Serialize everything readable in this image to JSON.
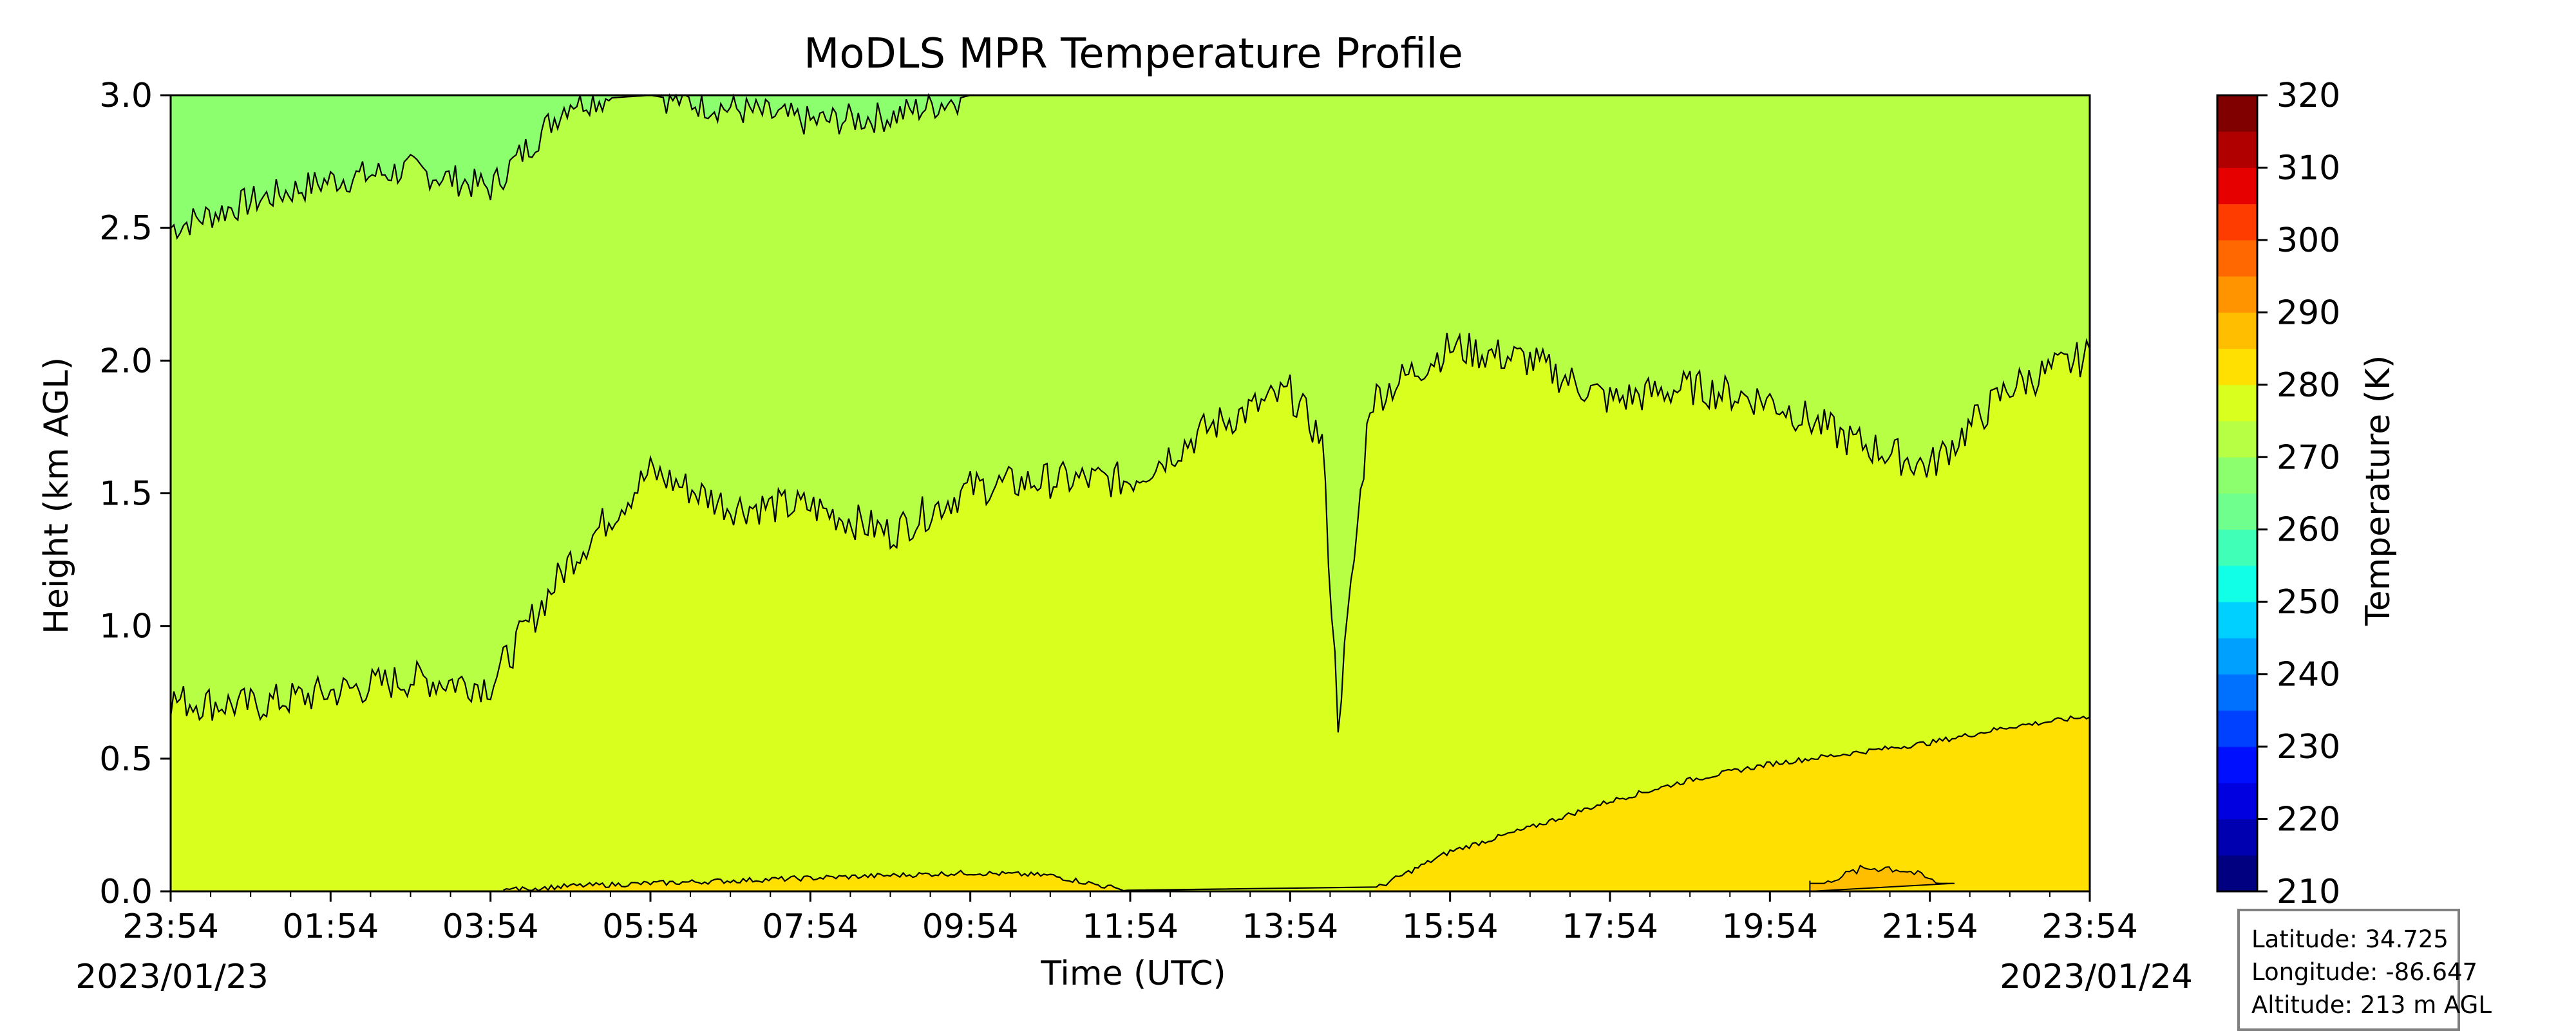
{
  "chart_data": {
    "type": "heatmap",
    "title": "MoDLS MPR Temperature Profile",
    "xlabel": "Time (UTC)",
    "ylabel": "Height (km AGL)",
    "colorbar_label": "Temperature (K)",
    "x_ticks": [
      "23:54",
      "01:54",
      "03:54",
      "05:54",
      "07:54",
      "09:54",
      "11:54",
      "13:54",
      "15:54",
      "17:54",
      "19:54",
      "21:54",
      "23:54"
    ],
    "date_start": "2023/01/23",
    "date_end": "2023/01/24",
    "ylim": [
      0.0,
      3.0
    ],
    "y_ticks": [
      "0.0",
      "0.5",
      "1.0",
      "1.5",
      "2.0",
      "2.5",
      "3.0"
    ],
    "colorbar_ticks": [
      "210",
      "220",
      "230",
      "240",
      "250",
      "260",
      "270",
      "280",
      "290",
      "300",
      "310",
      "320"
    ],
    "colorbar_range": [
      210,
      320
    ],
    "contour_levels": [
      265,
      270,
      275,
      280,
      285
    ],
    "contour_colors": {
      "265-270": "#8cff6e",
      "270-275": "#b6ff44",
      "275-280": "#d8ff1e",
      "280-285": "#ffe000",
      "285-290": "#ffbf00"
    },
    "contour_heights_km": {
      "times_hours_from_start": [
        0,
        1,
        2,
        3,
        4,
        5,
        6,
        7,
        8,
        9,
        10,
        11,
        12,
        13,
        14,
        14.4,
        14.6,
        15,
        16,
        17,
        18,
        19,
        20,
        21,
        22,
        23,
        24
      ],
      "level_270": [
        2.5,
        2.6,
        2.68,
        2.72,
        2.65,
        2.98,
        3.0,
        2.95,
        2.9,
        2.92,
        3.0,
        3.0,
        3.0,
        3.0,
        3.0,
        3.0,
        3.0,
        3.0,
        3.0,
        3.0,
        3.0,
        3.0,
        3.0,
        3.0,
        3.0,
        3.0,
        3.0
      ],
      "level_275": [
        0.72,
        0.7,
        0.75,
        0.8,
        0.78,
        1.25,
        1.58,
        1.45,
        1.45,
        1.35,
        1.52,
        1.55,
        1.55,
        1.75,
        1.88,
        1.7,
        0.65,
        1.85,
        2.05,
        2.0,
        1.85,
        1.9,
        1.85,
        1.7,
        1.6,
        1.9,
        2.02
      ],
      "level_280": [
        0,
        0,
        0,
        0,
        0,
        0.02,
        0.03,
        0.04,
        0.05,
        0.06,
        0.07,
        0.06,
        0.0,
        0.0,
        0.0,
        0.0,
        0.0,
        0.0,
        0.15,
        0.24,
        0.34,
        0.42,
        0.48,
        0.52,
        0.56,
        0.62,
        0.66
      ],
      "level_285_region": {
        "t_start": 20.5,
        "t_end": 22.3,
        "top_km": 0.1
      }
    }
  },
  "info_box": {
    "latitude": "Latitude: 34.725",
    "longitude": "Longitude: -86.647",
    "altitude": "Altitude: 213 m AGL"
  }
}
